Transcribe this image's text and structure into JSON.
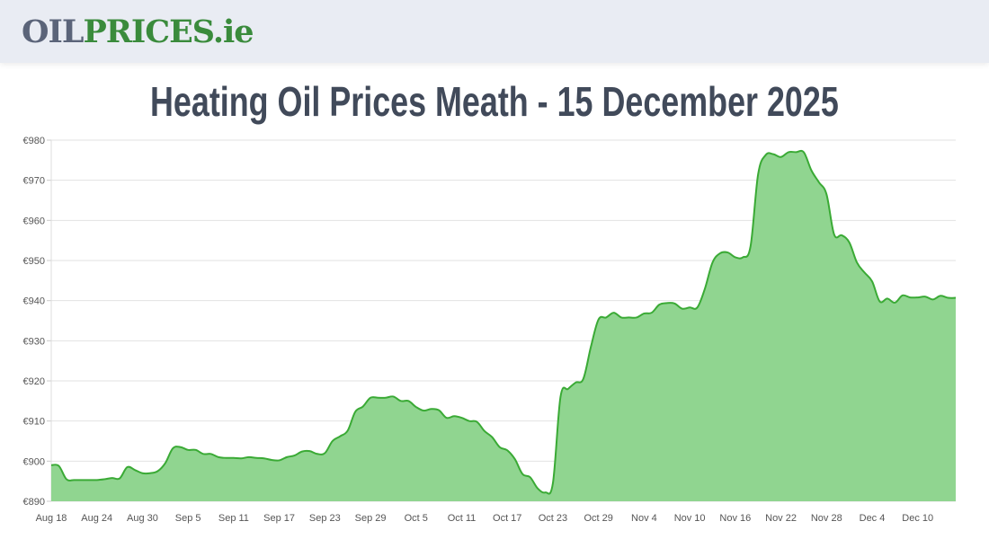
{
  "header": {
    "logo_part1": "OIL",
    "logo_part2": "PRICES.ie"
  },
  "page_title": "Heating Oil Prices Meath - 15 December 2025",
  "chart_data": {
    "type": "area",
    "title": "",
    "xlabel": "",
    "ylabel": "",
    "ylim": [
      890,
      980
    ],
    "y_ticks": [
      "€890",
      "€900",
      "€910",
      "€920",
      "€930",
      "€940",
      "€950",
      "€960",
      "€970",
      "€980"
    ],
    "x_ticks": [
      "Aug 18",
      "Aug 24",
      "Aug 30",
      "Sep 5",
      "Sep 11",
      "Sep 17",
      "Sep 23",
      "Sep 29",
      "Oct 5",
      "Oct 11",
      "Oct 17",
      "Oct 23",
      "Oct 29",
      "Nov 4",
      "Nov 10",
      "Nov 16",
      "Nov 22",
      "Nov 28",
      "Dec 4",
      "Dec 10"
    ],
    "x_range": [
      "Aug 18",
      "Dec 15"
    ],
    "grid": true,
    "line_color": "#3aaa35",
    "fill_color": "#90d590",
    "values": [
      899,
      898.8,
      895.5,
      895.3,
      895.3,
      895.3,
      895.3,
      895.5,
      895.8,
      895.7,
      898.5,
      897.8,
      897,
      897,
      897.5,
      899.5,
      903.2,
      903.5,
      902.8,
      902.8,
      901.8,
      901.8,
      901,
      900.8,
      900.8,
      900.7,
      901,
      900.8,
      900.7,
      900.3,
      900.2,
      901,
      901.4,
      902.4,
      902.5,
      901.8,
      902,
      905,
      906.2,
      907.6,
      912.3,
      913.6,
      915.8,
      915.8,
      915.8,
      916.1,
      915,
      915,
      913.5,
      912.6,
      913,
      912.7,
      910.8,
      911.2,
      910.8,
      910,
      909.8,
      907.5,
      906,
      903.5,
      902.7,
      900.5,
      896.8,
      896,
      893.2,
      892.2,
      894.5,
      916,
      918,
      919.6,
      920.5,
      928.5,
      935.3,
      935.8,
      937,
      935.8,
      935.8,
      935.8,
      936.8,
      937,
      939,
      939.4,
      939.3,
      938,
      938.3,
      938.3,
      943,
      949.5,
      951.8,
      952,
      950.8,
      950.8,
      953.5,
      971.5,
      976.3,
      976.5,
      975.8,
      977,
      977,
      977,
      972.5,
      969.5,
      966.5,
      956.5,
      956.3,
      954.5,
      949.5,
      947,
      944.8,
      939.8,
      940.5,
      939.5,
      941.3,
      940.8,
      940.8,
      941,
      940.3,
      941.2,
      940.7,
      940.7
    ]
  }
}
